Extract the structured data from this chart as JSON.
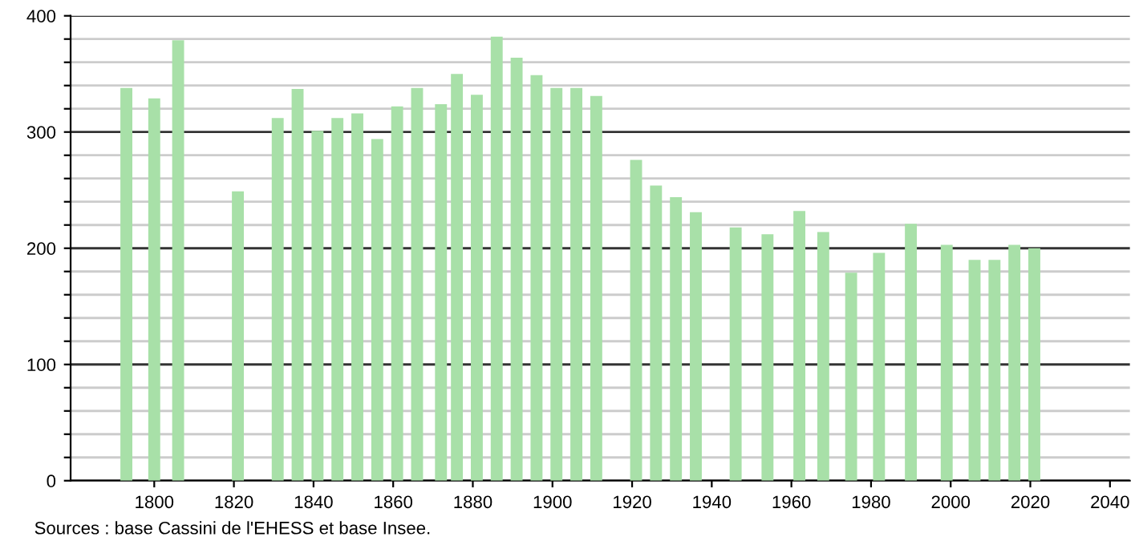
{
  "chart_data": {
    "type": "bar",
    "x": [
      1793,
      1800,
      1806,
      1821,
      1831,
      1836,
      1841,
      1846,
      1851,
      1856,
      1861,
      1866,
      1872,
      1876,
      1881,
      1886,
      1891,
      1896,
      1901,
      1906,
      1911,
      1921,
      1926,
      1931,
      1936,
      1946,
      1954,
      1962,
      1968,
      1975,
      1982,
      1990,
      1999,
      2006,
      2011,
      2016,
      2021
    ],
    "values": [
      338,
      329,
      379,
      249,
      312,
      337,
      301,
      312,
      316,
      294,
      322,
      338,
      324,
      350,
      332,
      382,
      364,
      349,
      338,
      338,
      331,
      276,
      254,
      244,
      231,
      218,
      212,
      232,
      214,
      179,
      196,
      221,
      203,
      190,
      190,
      203,
      200
    ],
    "color": "#a8e0a8",
    "xlim": [
      1779,
      2045
    ],
    "xticks": [
      1800,
      1820,
      1840,
      1860,
      1880,
      1900,
      1920,
      1940,
      1960,
      1980,
      2000,
      2020,
      2040
    ],
    "ylim": [
      0,
      400
    ],
    "yticks": [
      0,
      {
        "value": 20,
        "label": null
      },
      {
        "value": 40,
        "label": null
      },
      {
        "value": 60,
        "label": null
      },
      {
        "value": 80,
        "label": null
      },
      100,
      {
        "value": 120,
        "label": null
      },
      {
        "value": 140,
        "label": null
      },
      {
        "value": 160,
        "label": null
      },
      {
        "value": 180,
        "label": null
      },
      200,
      {
        "value": 220,
        "label": null
      },
      {
        "value": 240,
        "label": null
      },
      {
        "value": 260,
        "label": null
      },
      {
        "value": 280,
        "label": null
      },
      300,
      {
        "value": 320,
        "label": null
      },
      {
        "value": 340,
        "label": null
      },
      {
        "value": 360,
        "label": null
      },
      {
        "value": 380,
        "label": null
      },
      400
    ],
    "grid": "y",
    "annotations": [
      "Sources : base Cassini de l'EHESS et base Insee."
    ]
  }
}
